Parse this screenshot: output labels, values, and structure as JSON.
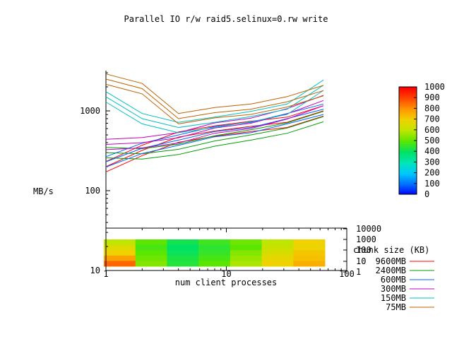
{
  "chart_data": {
    "type": "line",
    "title": "Parallel IO r/w raid5.selinux=0.rw write",
    "xlabel": "num client processes",
    "ylabel": "MB/s",
    "x_scale": "log",
    "y_scale": "log",
    "xlim": [
      1,
      100
    ],
    "ylim": [
      10,
      3000
    ],
    "x_ticks": [
      "1",
      "10",
      "100"
    ],
    "y_ticks": [
      "10",
      "100",
      "1000"
    ],
    "y2_ticks": [
      "1",
      "10",
      "100",
      "1000",
      "10000"
    ],
    "x": [
      1,
      2,
      4,
      8,
      16,
      32,
      64
    ],
    "legend_title": "chunk size (KB)",
    "legend_position": "right",
    "series": [
      {
        "name": "9600MB",
        "color": "#ff0000",
        "values": [
          200,
          320,
          470,
          560,
          640,
          720,
          1000
        ]
      },
      {
        "name": "2400MB",
        "color": "#00a000",
        "values": [
          300,
          290,
          330,
          420,
          500,
          610,
          850
        ]
      },
      {
        "name": "600MB",
        "color": "#0060ff",
        "values": [
          230,
          340,
          430,
          550,
          620,
          800,
          1050
        ]
      },
      {
        "name": "300MB",
        "color": "#c000c0",
        "values": [
          380,
          400,
          460,
          610,
          700,
          920,
          1350
        ]
      },
      {
        "name": "150MB",
        "color": "#00c0c0",
        "values": [
          1500,
          800,
          620,
          720,
          850,
          1050,
          2100
        ]
      },
      {
        "name": "75MB",
        "color": "#c06000",
        "values": [
          2500,
          1900,
          800,
          950,
          1050,
          1300,
          1800
        ]
      }
    ],
    "colorbar": {
      "ticks": [
        "0",
        "100",
        "200",
        "300",
        "400",
        "500",
        "600",
        "700",
        "800",
        "900",
        "1000"
      ],
      "min": 0,
      "max": 1000
    },
    "heatmap": {
      "columns": [
        1,
        2,
        4,
        8,
        16,
        32,
        64
      ],
      "rows": [
        [
          600,
          500,
          420,
          470,
          520,
          600,
          700
        ],
        [
          660,
          480,
          400,
          450,
          500,
          620,
          690
        ],
        [
          700,
          500,
          410,
          460,
          540,
          650,
          720
        ],
        [
          780,
          520,
          430,
          480,
          560,
          680,
          730
        ],
        [
          860,
          540,
          440,
          500,
          580,
          700,
          760
        ]
      ]
    }
  }
}
